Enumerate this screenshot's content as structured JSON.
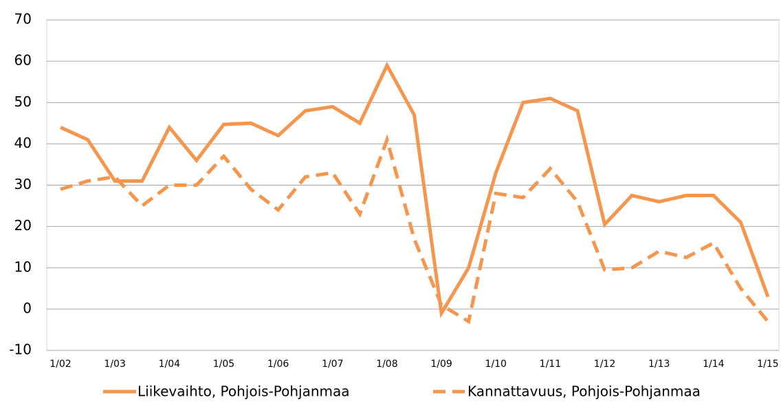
{
  "chart_data": {
    "type": "line",
    "categories": [
      "1/02",
      null,
      "1/03",
      null,
      "1/04",
      null,
      "1/05",
      null,
      "1/06",
      null,
      "1/07",
      null,
      "1/08",
      null,
      "1/09",
      null,
      "1/10",
      null,
      "1/11",
      null,
      "1/12",
      null,
      "1/13",
      null,
      "1/14",
      null,
      "1/15"
    ],
    "series": [
      {
        "name": "Liikevaihto, Pohjois-Pohjanmaa",
        "color": "#f5964e",
        "dashed": false,
        "values": [
          44,
          41,
          31,
          31,
          44,
          36,
          44.7,
          45,
          42,
          48,
          49,
          45,
          59,
          47,
          -1,
          10,
          33,
          50,
          51,
          48,
          20.5,
          27.5,
          26,
          27.5,
          27.5,
          21,
          3
        ]
      },
      {
        "name": "Kannattavuus, Pohjois-Pohjanmaa",
        "color": "#f5964e",
        "dashed": true,
        "values": [
          29,
          31,
          32,
          25,
          30,
          30,
          37,
          29,
          24,
          32,
          33,
          23,
          41,
          17,
          1,
          -3,
          28,
          27,
          34,
          26,
          9.5,
          10,
          14,
          12.5,
          16,
          5,
          -3
        ]
      }
    ],
    "ylim": [
      -10,
      70
    ],
    "yticks": [
      -10,
      0,
      10,
      20,
      30,
      40,
      50,
      60,
      70
    ],
    "grid": true,
    "legend": "bottom"
  }
}
